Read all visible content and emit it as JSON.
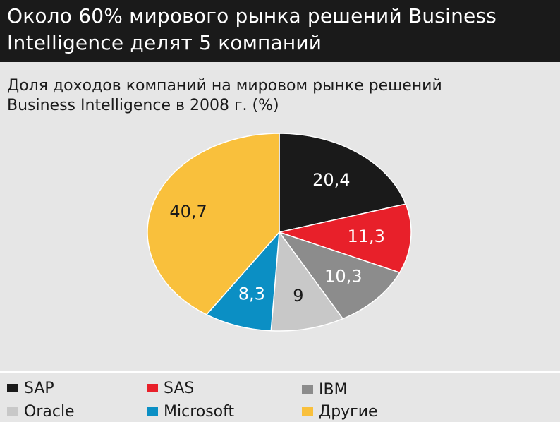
{
  "header": {
    "line1": "Около 60% мирового рынка решений Business",
    "line2": "Intelligence делят 5 компаний"
  },
  "chart_data": {
    "type": "pie",
    "title": "Доля доходов компаний на мировом рынке решений Business Intelligence в 2008 г. (%)",
    "title_line1": "Доля доходов компаний на мировом рынке решений",
    "title_line2": "Business Intelligence в 2008 г. (%)",
    "categories": [
      "SAP",
      "SAS",
      "IBM",
      "Oracle",
      "Microsoft",
      "Другие"
    ],
    "values": [
      20.4,
      11.3,
      10.3,
      9,
      8.3,
      40.7
    ],
    "value_labels": [
      "20,4",
      "11,3",
      "10,3",
      "9",
      "8,3",
      "40,7"
    ],
    "colors": [
      "#1a1a1a",
      "#e8202a",
      "#8c8c8c",
      "#c8c8c8",
      "#0b8fc4",
      "#f9c03c"
    ],
    "label_colors": [
      "#ffffff",
      "#ffffff",
      "#ffffff",
      "#1a1a1a",
      "#ffffff",
      "#1a1a1a"
    ],
    "start_direction": "12 o'clock, clockwise",
    "legend_placement": "bottom"
  },
  "legend": {
    "items": [
      {
        "label": "SAP",
        "color": "#1a1a1a"
      },
      {
        "label": "SAS",
        "color": "#e8202a"
      },
      {
        "label": "IBM",
        "color": "#8c8c8c"
      },
      {
        "label": "Oracle",
        "color": "#c8c8c8"
      },
      {
        "label": "Microsoft",
        "color": "#0b8fc4"
      },
      {
        "label": "Другие",
        "color": "#f9c03c"
      }
    ]
  }
}
